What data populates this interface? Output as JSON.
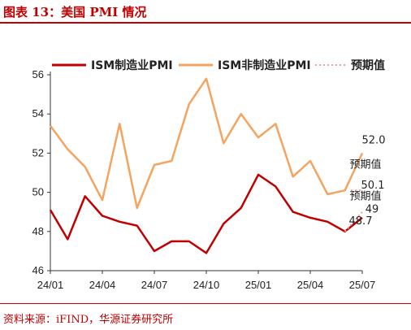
{
  "header": {
    "title": "图表 13：美国 PMI 情况"
  },
  "footer": {
    "source": "资料来源：iFIND，华源证券研究所"
  },
  "chart_data": {
    "type": "line",
    "title": "",
    "xlabel": "",
    "ylabel": "",
    "x": [
      "24/01",
      "24/02",
      "24/03",
      "24/04",
      "24/05",
      "24/06",
      "24/07",
      "24/08",
      "24/09",
      "24/10",
      "24/11",
      "24/12",
      "25/01",
      "25/02",
      "25/03",
      "25/04",
      "25/05",
      "25/06",
      "25/07"
    ],
    "x_tick_labels": [
      "24/01",
      "24/04",
      "24/07",
      "24/10",
      "25/01",
      "25/04",
      "25/07"
    ],
    "ylim": [
      46,
      56
    ],
    "y_ticks": [
      "46",
      "48",
      "50",
      "52",
      "54",
      "56"
    ],
    "grid": false,
    "legend_position": "top",
    "series": [
      {
        "name": "ISM制造业PMI",
        "color": "#c00000",
        "values": [
          49.1,
          47.6,
          49.8,
          48.8,
          48.5,
          48.3,
          47.0,
          47.5,
          47.5,
          46.9,
          48.4,
          49.2,
          50.9,
          50.3,
          49.0,
          48.7,
          48.5,
          48.0,
          48.7
        ]
      },
      {
        "name": "ISM非制造业PMI",
        "color": "#f4a460",
        "values": [
          53.4,
          52.2,
          51.3,
          49.6,
          53.5,
          49.2,
          51.4,
          51.6,
          54.5,
          55.8,
          52.5,
          54.0,
          52.8,
          53.5,
          50.8,
          51.6,
          49.9,
          50.1,
          52.0
        ]
      },
      {
        "name": "预期值",
        "color": "#e8a0a0",
        "dotted": true,
        "segments": [
          {
            "x": [
              "25/07"
            ],
            "values": [
              50.1
            ]
          },
          {
            "x": [
              "25/06",
              "25/07"
            ],
            "values": [
              48.0,
              49.0
            ]
          }
        ]
      }
    ],
    "annotations": [
      {
        "text": "52.0",
        "x": "25/07",
        "y": 52.0
      },
      {
        "text": "预期值",
        "x": "25/07",
        "y": 51.0
      },
      {
        "text": "50.1",
        "x": "25/07",
        "y": 50.1
      },
      {
        "text": "预期值",
        "x": "25/07",
        "y": 49.5
      },
      {
        "text": "49",
        "x": "25/07",
        "y": 49.0
      },
      {
        "text": "48.7",
        "x": "25/07",
        "y": 48.7
      }
    ]
  }
}
